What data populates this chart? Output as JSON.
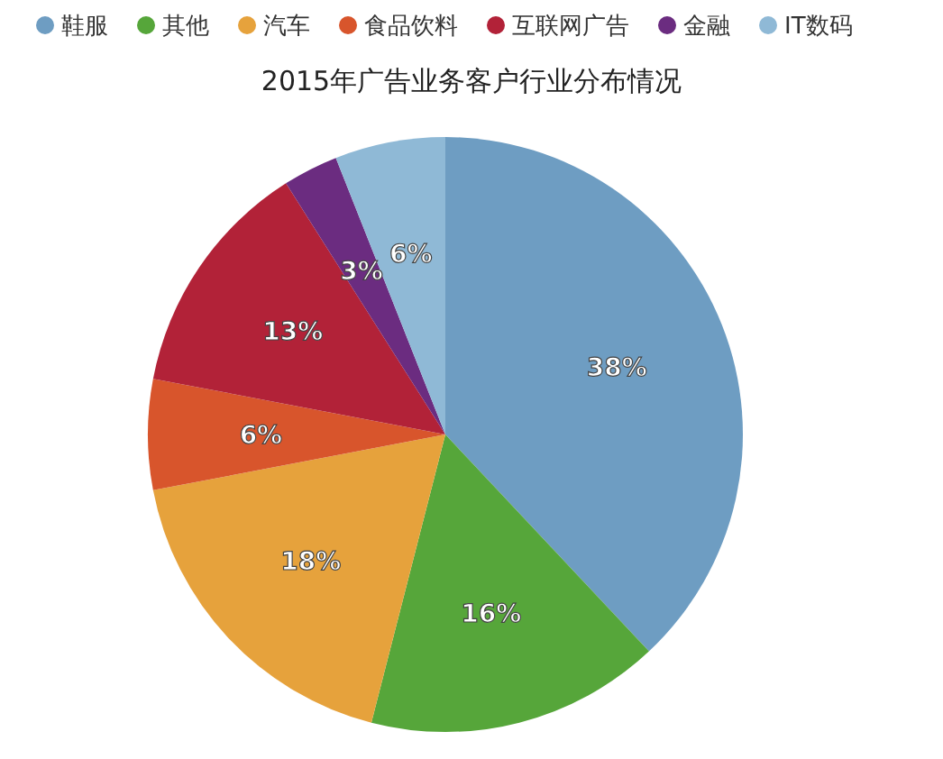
{
  "chart_data": {
    "type": "pie",
    "title": "2015年广告业务客户行业分布情况",
    "categories": [
      "鞋服",
      "其他",
      "汽车",
      "食品饮料",
      "互联网广告",
      "金融",
      "IT数码"
    ],
    "values": [
      38,
      16,
      18,
      6,
      13,
      3,
      6
    ],
    "colors": [
      "#6e9dc2",
      "#56a63a",
      "#e6a23c",
      "#d8552c",
      "#b22238",
      "#6b2c80",
      "#8fb9d6"
    ],
    "value_labels": [
      "38%",
      "16%",
      "18%",
      "6%",
      "13%",
      "3%",
      "6%"
    ],
    "legend": "top"
  }
}
